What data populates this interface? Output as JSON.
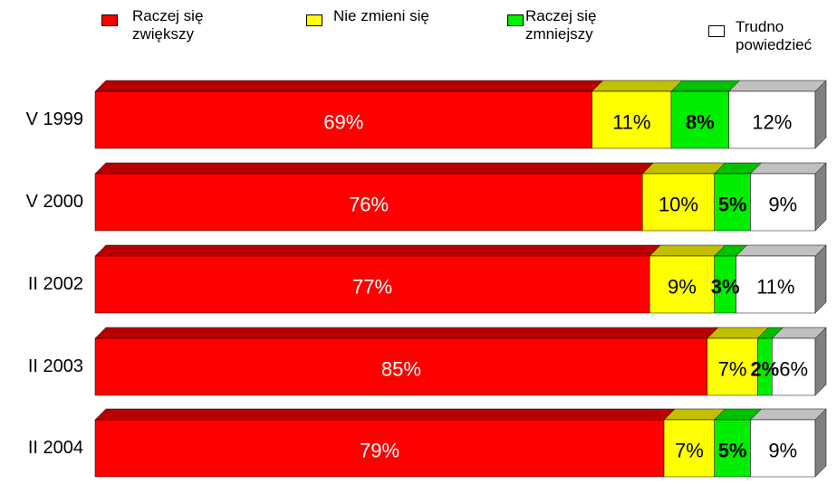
{
  "chart_data": {
    "type": "bar",
    "orientation": "horizontal",
    "stacked": true,
    "three_d": true,
    "categories": [
      "V 1999",
      "V 2000",
      "II 2002",
      "II 2003",
      "II 2004"
    ],
    "series": [
      {
        "name": "Raczej się zwiększy",
        "color": "#ff0000",
        "top_color": "#b80000",
        "label_color": "#ffffff",
        "bold": false,
        "values": [
          69,
          76,
          77,
          85,
          79
        ],
        "value_labels": [
          "69%",
          "76%",
          "77%",
          "85%",
          "79%"
        ]
      },
      {
        "name": "Nie zmieni się",
        "color": "#ffff00",
        "top_color": "#c0c000",
        "label_color": "#000000",
        "bold": false,
        "values": [
          11,
          10,
          9,
          7,
          7
        ],
        "value_labels": [
          "11%",
          "10%",
          "9%",
          "7%",
          "7%"
        ]
      },
      {
        "name": "Raczej się zmniejszy",
        "color": "#00ee00",
        "top_color": "#00c000",
        "label_color": "#000000",
        "bold": true,
        "values": [
          8,
          5,
          3,
          2,
          5
        ],
        "value_labels": [
          "8%",
          "5%",
          "3%",
          "2%",
          "5%"
        ]
      },
      {
        "name": "Trudno powiedzieć",
        "color": "#ffffff",
        "top_color": "#c0c0c0",
        "label_color": "#000000",
        "bold": false,
        "values": [
          12,
          9,
          11,
          6,
          9
        ],
        "value_labels": [
          "12%",
          "9%",
          "11%",
          "6%",
          "9%"
        ]
      }
    ]
  }
}
